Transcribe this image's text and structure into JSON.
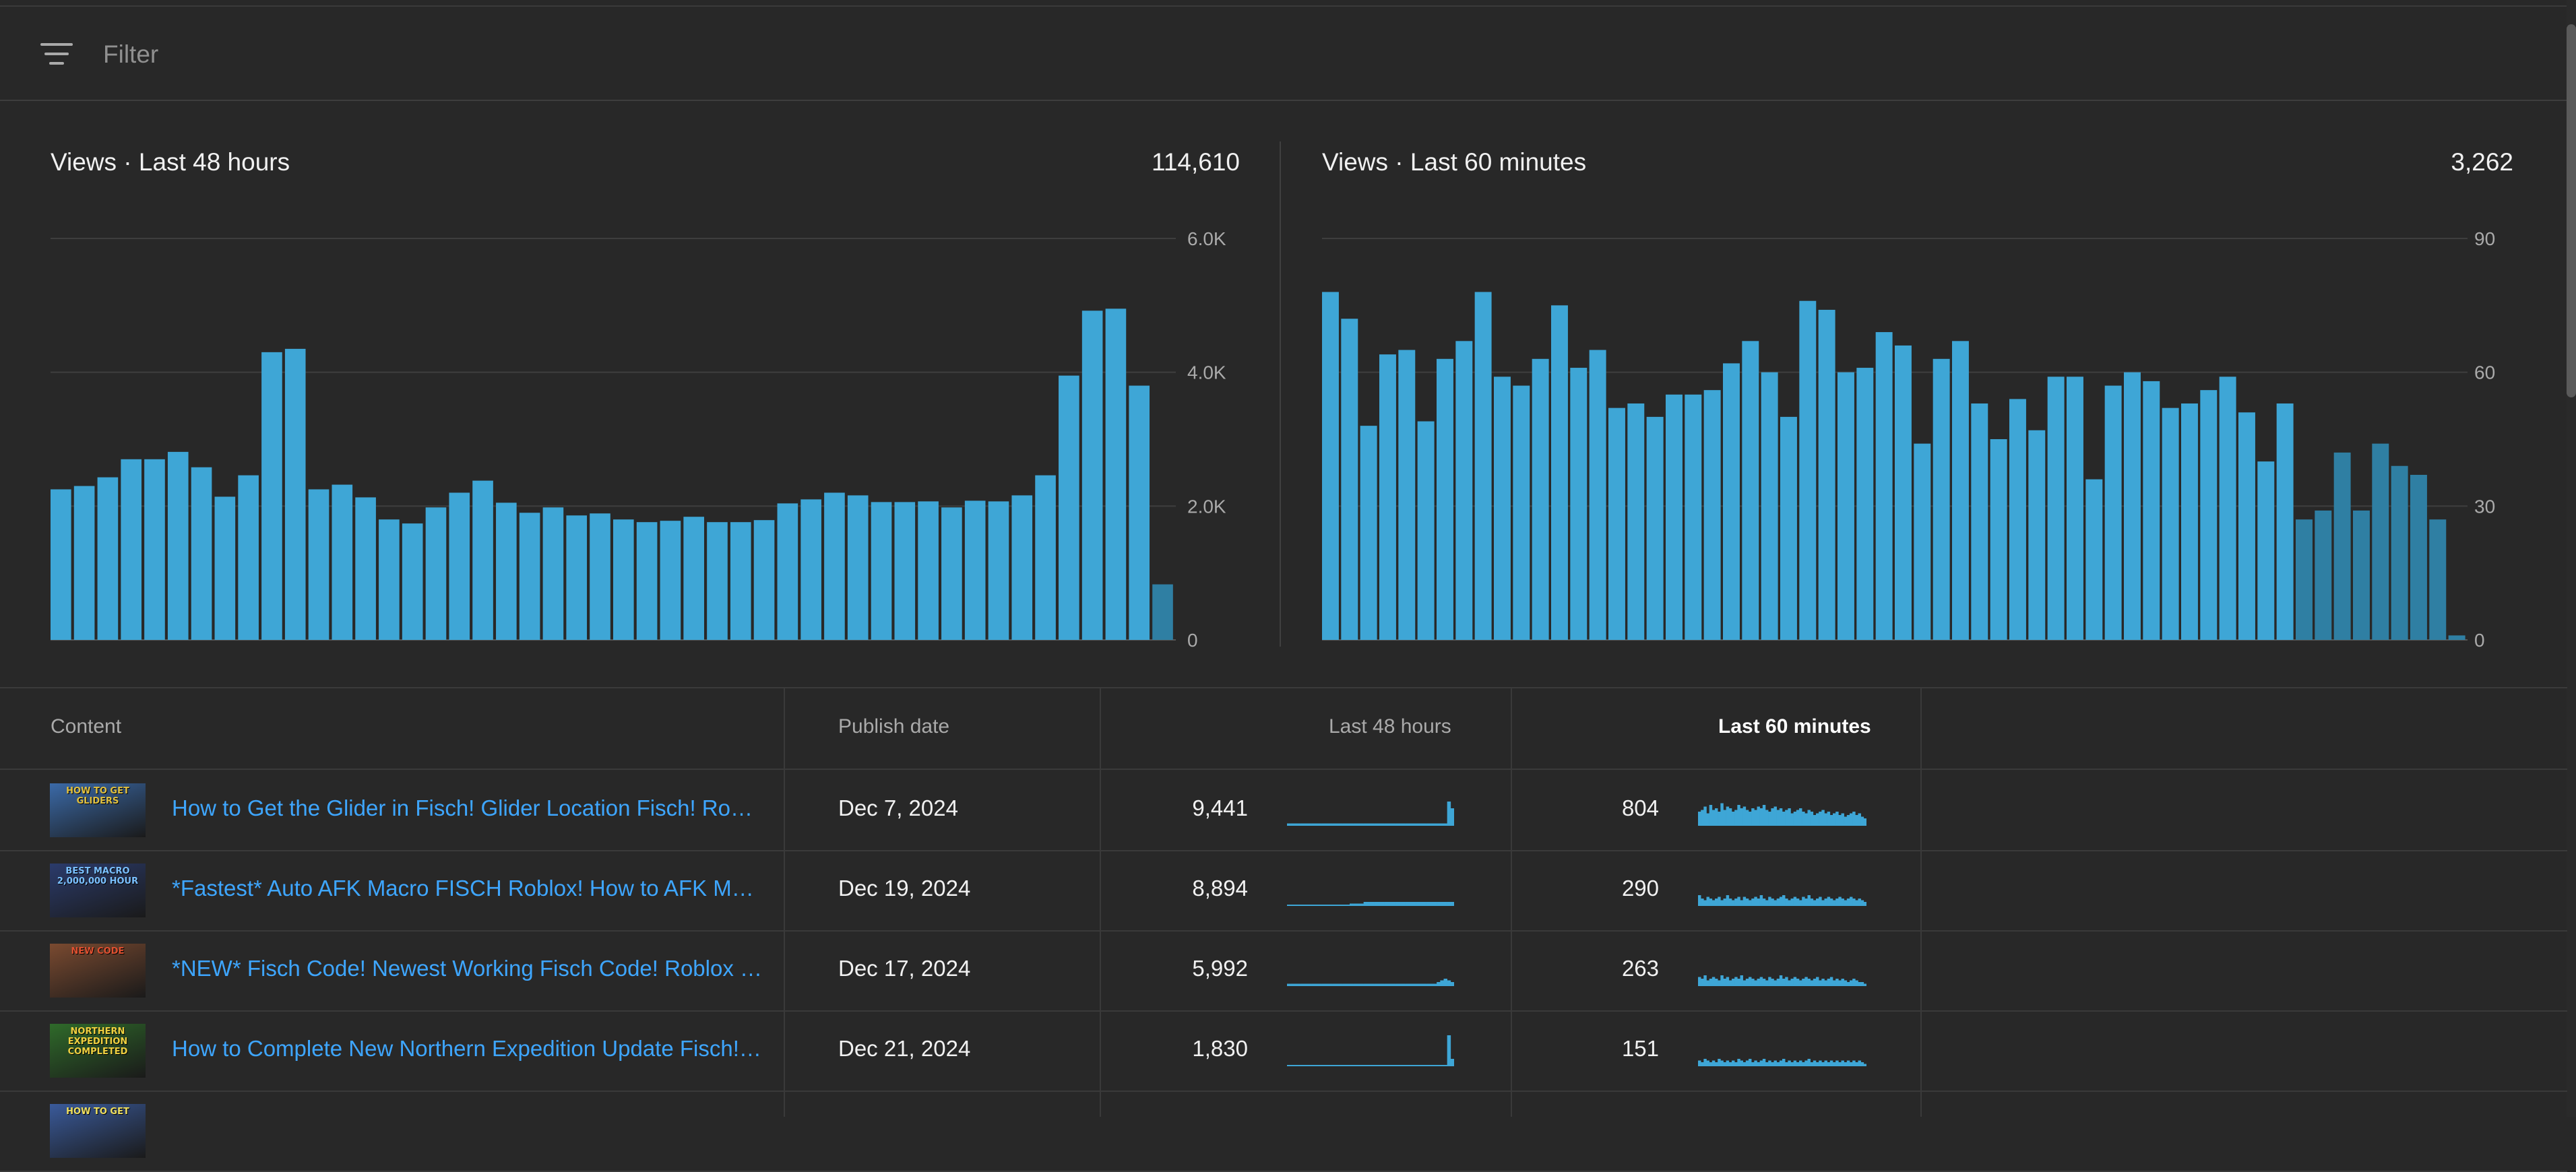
{
  "filter": {
    "placeholder": "Filter"
  },
  "charts": {
    "left": {
      "title": "Views · Last 48 hours",
      "total": "114,610"
    },
    "right": {
      "title": "Views · Last 60 minutes",
      "total": "3,262"
    }
  },
  "chart_data": [
    {
      "type": "bar",
      "title": "Views · Last 48 hours",
      "total": "114,610",
      "ylim": [
        0,
        6000
      ],
      "yticks": [
        "0",
        "2.0K",
        "4.0K",
        "6.0K"
      ],
      "ytick_values": [
        0,
        2000,
        4000,
        6000
      ],
      "grid": true,
      "values": [
        2250,
        2300,
        2430,
        2700,
        2700,
        2810,
        2580,
        2140,
        2460,
        4300,
        4350,
        2250,
        2320,
        2130,
        1800,
        1740,
        1980,
        2200,
        2380,
        2050,
        1900,
        1980,
        1860,
        1890,
        1800,
        1760,
        1780,
        1840,
        1760,
        1760,
        1790,
        2040,
        2100,
        2200,
        2160,
        2060,
        2060,
        2070,
        1980,
        2080,
        2070,
        2160,
        2460,
        3950,
        4920,
        4950,
        3800,
        830
      ],
      "highlight_last": true
    },
    {
      "type": "bar",
      "title": "Views · Last 60 minutes",
      "total": "3,262",
      "ylim": [
        0,
        90
      ],
      "yticks": [
        "0",
        "30",
        "60",
        "90"
      ],
      "ytick_values": [
        0,
        30,
        60,
        90
      ],
      "grid": true,
      "values": [
        78,
        72,
        48,
        64,
        65,
        49,
        63,
        67,
        78,
        59,
        57,
        63,
        75,
        61,
        65,
        52,
        53,
        50,
        55,
        55,
        56,
        62,
        67,
        60,
        50,
        76,
        74,
        60,
        61,
        69,
        66,
        44,
        63,
        67,
        53,
        45,
        54,
        47,
        59,
        59,
        36,
        57,
        60,
        58,
        52,
        53,
        56,
        59,
        51,
        40,
        53,
        27,
        29,
        42,
        29,
        44,
        39,
        37,
        27,
        1
      ],
      "highlight_from_index": 51
    }
  ],
  "table": {
    "headers": {
      "content": "Content",
      "publish_date": "Publish date",
      "last48": "Last 48 hours",
      "last60": "Last 60 minutes"
    },
    "rows": [
      {
        "thumb_text": "HOW TO GET GLIDERS",
        "title": "How to Get the Glider in Fisch! Glider Location Fisch! Roblox",
        "date": "Dec 7, 2024",
        "views48": "9,441",
        "views60": "804",
        "spark48": [
          1,
          1,
          1,
          1,
          1,
          1,
          1,
          1,
          1,
          1,
          1,
          1,
          1,
          1,
          1,
          1,
          1,
          1,
          1,
          1,
          1,
          1,
          1,
          1,
          1,
          1,
          1,
          1,
          1,
          1,
          1,
          1,
          1,
          1,
          1,
          1,
          1,
          1,
          1,
          1,
          1,
          1,
          1,
          1,
          1,
          1,
          14,
          10
        ],
        "spark60": [
          8,
          9,
          11,
          7,
          12,
          9,
          10,
          8,
          13,
          9,
          11,
          10,
          8,
          9,
          12,
          10,
          11,
          9,
          8,
          10,
          9,
          11,
          10,
          12,
          9,
          8,
          10,
          11,
          9,
          10,
          8,
          9,
          10,
          7,
          8,
          9,
          10,
          8,
          7,
          9,
          8,
          6,
          7,
          8,
          9,
          7,
          8,
          6,
          7,
          8,
          6,
          7,
          5,
          6,
          7,
          8,
          6,
          7,
          5,
          4
        ]
      },
      {
        "thumb_text": "BEST MACRO 2,000,000 HOUR",
        "title": "*Fastest* Auto AFK Macro FISCH Roblox! How to AFK Macro FISCH Roblox",
        "date": "Dec 19, 2024",
        "views48": "8,894",
        "views60": "290",
        "spark48": [
          0,
          0,
          0,
          0,
          0,
          0,
          0,
          0,
          0,
          0,
          0,
          0,
          0,
          0,
          0,
          0,
          0,
          0,
          1,
          1,
          1,
          1,
          2,
          2,
          2,
          2,
          2,
          2,
          2,
          2,
          2,
          2,
          2,
          2,
          2,
          2,
          2,
          2,
          2,
          2,
          2,
          2,
          2,
          2,
          2,
          2,
          2,
          2
        ],
        "spark60": [
          6,
          4,
          3,
          5,
          4,
          3,
          4,
          5,
          3,
          4,
          6,
          4,
          3,
          4,
          5,
          3,
          5,
          4,
          3,
          4,
          5,
          4,
          6,
          4,
          3,
          5,
          4,
          3,
          4,
          5,
          6,
          4,
          3,
          4,
          5,
          4,
          3,
          5,
          4,
          6,
          4,
          3,
          4,
          5,
          3,
          4,
          5,
          4,
          3,
          4,
          5,
          4,
          3,
          4,
          5,
          4,
          3,
          4,
          3,
          2
        ]
      },
      {
        "thumb_text": "NEW CODE",
        "title": "*NEW* Fisch Code! Newest Working Fisch Code! Roblox #fisch #roblox",
        "date": "Dec 17, 2024",
        "views48": "5,992",
        "views60": "263",
        "spark48": [
          1,
          1,
          1,
          1,
          1,
          1,
          1,
          1,
          1,
          1,
          1,
          1,
          1,
          1,
          1,
          1,
          1,
          1,
          1,
          1,
          1,
          1,
          1,
          1,
          1,
          1,
          1,
          1,
          1,
          1,
          1,
          1,
          1,
          1,
          1,
          1,
          1,
          1,
          1,
          1,
          1,
          1,
          1,
          2,
          3,
          4,
          3,
          2
        ],
        "spark60": [
          5,
          4,
          6,
          3,
          4,
          5,
          4,
          3,
          6,
          4,
          5,
          3,
          4,
          5,
          4,
          6,
          3,
          4,
          5,
          4,
          3,
          4,
          5,
          4,
          3,
          5,
          4,
          3,
          4,
          6,
          4,
          5,
          3,
          4,
          5,
          4,
          3,
          4,
          5,
          4,
          3,
          4,
          5,
          3,
          4,
          3,
          4,
          5,
          3,
          4,
          3,
          4,
          3,
          2,
          3,
          4,
          3,
          2,
          2,
          1
        ]
      },
      {
        "thumb_text": "NORTHERN EXPEDITION COMPLETED",
        "title": "How to Complete New Northern Expedition Update Fisch! Northern Expedition",
        "date": "Dec 21, 2024",
        "views48": "1,830",
        "views60": "151",
        "spark48": [
          0,
          0,
          0,
          0,
          0,
          0,
          0,
          0,
          0,
          0,
          0,
          0,
          0,
          0,
          0,
          0,
          0,
          0,
          0,
          0,
          0,
          0,
          0,
          0,
          0,
          0,
          0,
          0,
          0,
          0,
          0,
          0,
          0,
          0,
          0,
          0,
          0,
          0,
          0,
          0,
          0,
          0,
          0,
          0,
          0,
          0,
          18,
          4
        ],
        "spark60": [
          3,
          2,
          4,
          3,
          2,
          3,
          2,
          4,
          3,
          2,
          3,
          2,
          3,
          2,
          4,
          3,
          2,
          3,
          4,
          2,
          3,
          2,
          3,
          4,
          2,
          3,
          2,
          3,
          2,
          3,
          4,
          2,
          3,
          2,
          3,
          2,
          3,
          2,
          3,
          4,
          2,
          3,
          2,
          3,
          2,
          3,
          2,
          3,
          2,
          3,
          2,
          3,
          2,
          3,
          2,
          3,
          2,
          3,
          2,
          1
        ]
      },
      {
        "thumb_text": "HOW TO GET",
        "title": "",
        "date": "",
        "views48": "",
        "views60": "",
        "spark48": [],
        "spark60": []
      }
    ]
  },
  "colors": {
    "background": "#282828",
    "bar": "#3ea6d6",
    "bar_muted": "#2f7fa3",
    "link": "#3ea6ff",
    "grid": "#3e3e3e",
    "text_muted": "#aaaaaa"
  },
  "icons": {
    "filter": "filter-lines-icon"
  }
}
